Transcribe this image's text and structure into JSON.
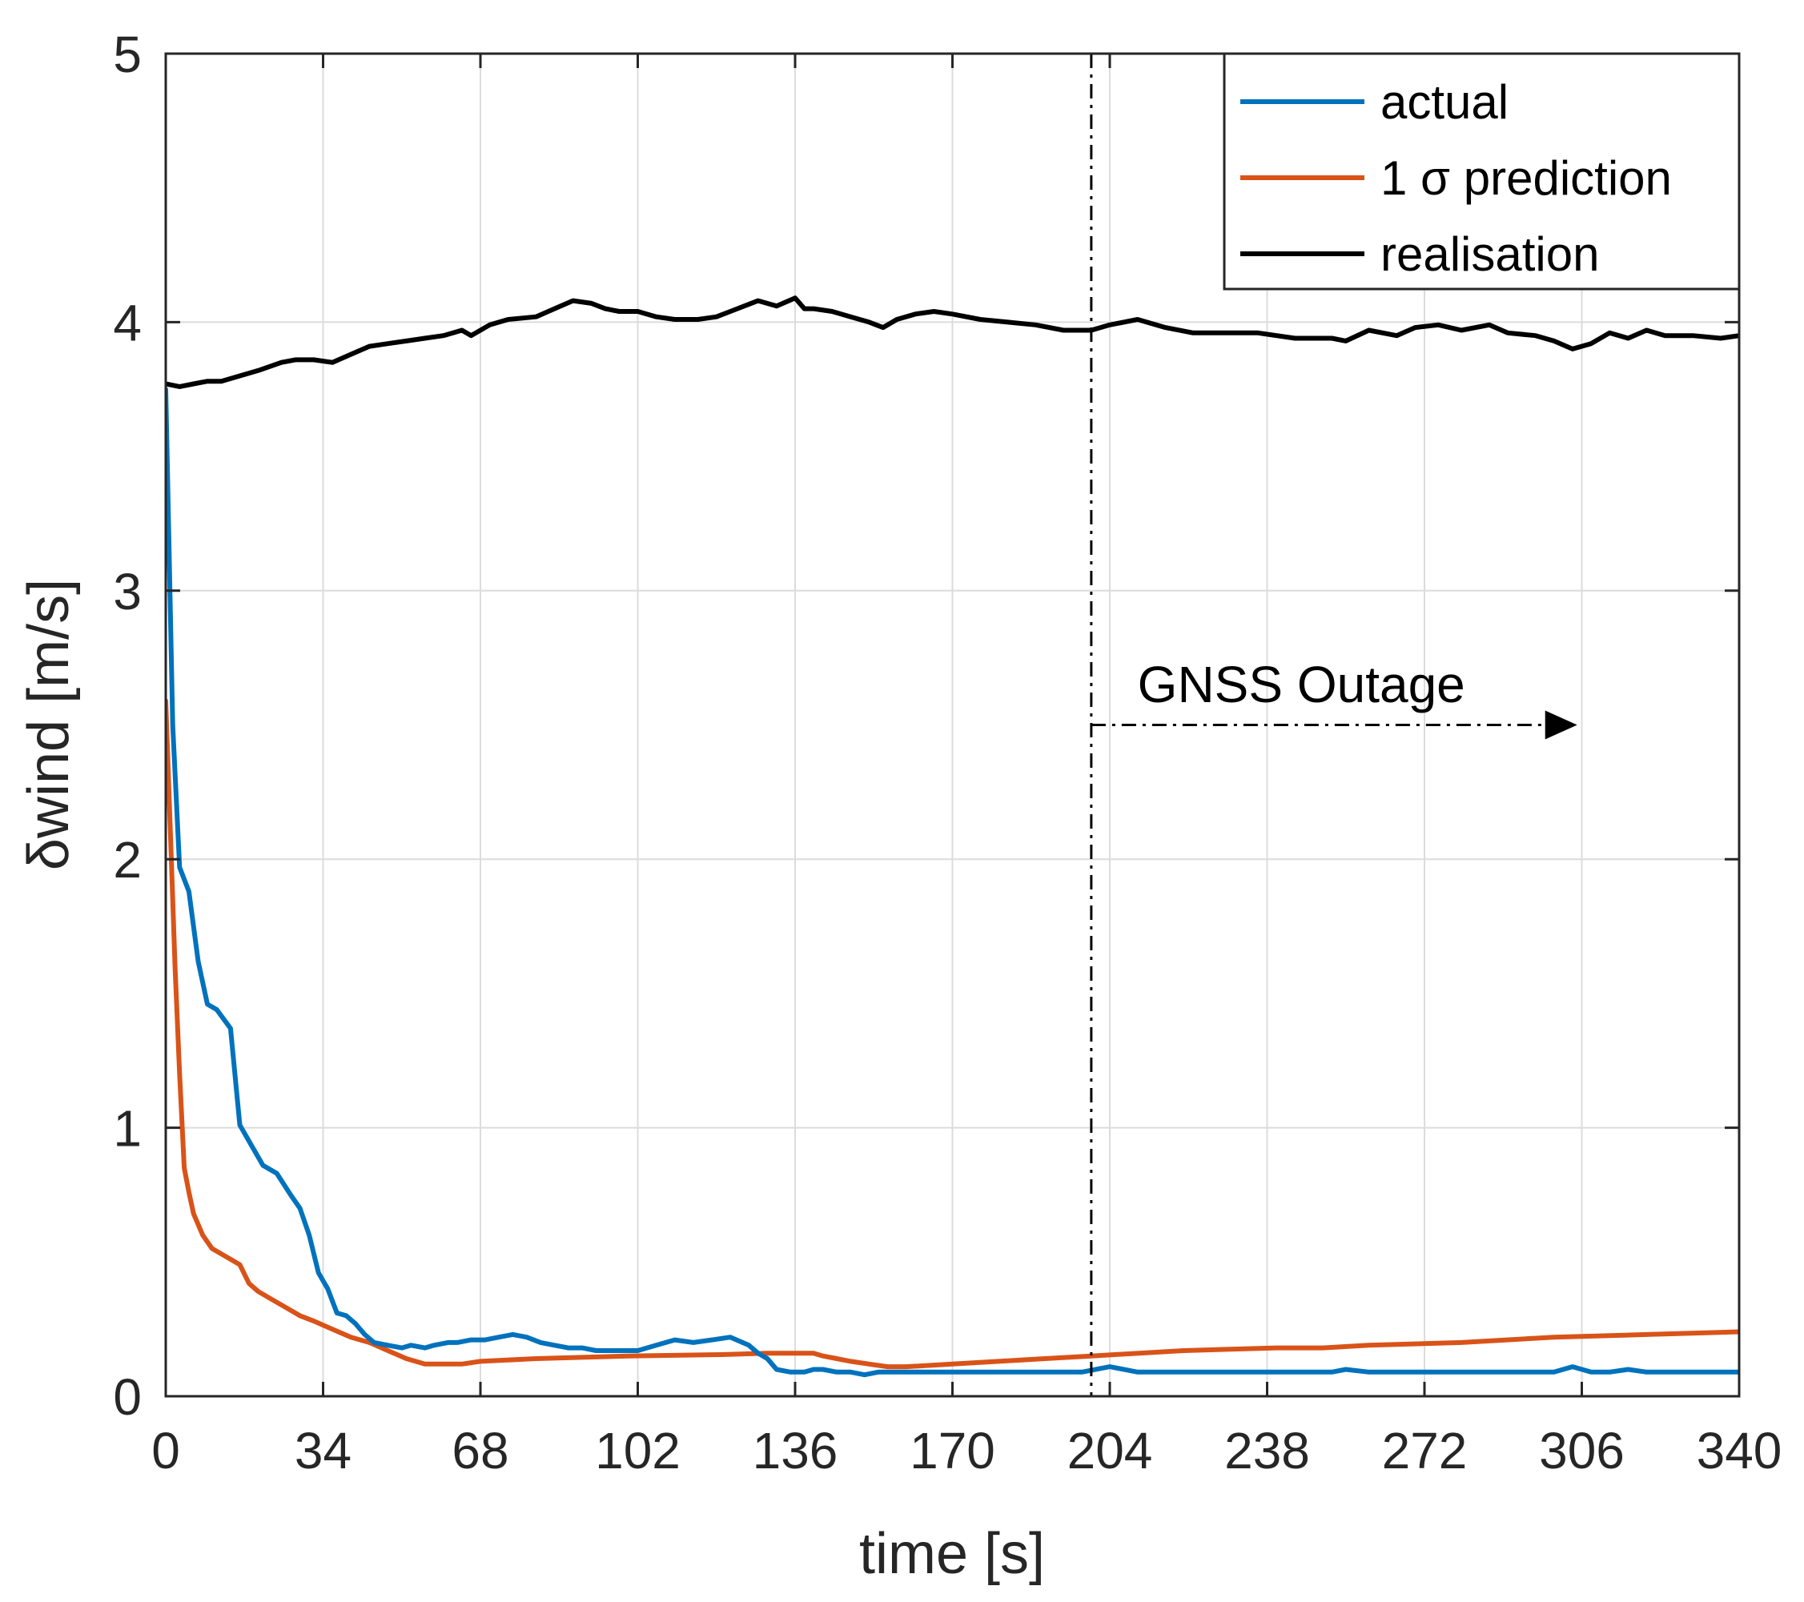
{
  "chart_data": {
    "type": "line",
    "title": "",
    "xlabel": "time [s]",
    "ylabel": "δwind [m/s]",
    "xlim": [
      0,
      340
    ],
    "ylim": [
      0,
      5
    ],
    "xticks": [
      0,
      34,
      68,
      102,
      136,
      170,
      204,
      238,
      272,
      306,
      340
    ],
    "yticks": [
      0,
      1,
      2,
      3,
      4,
      5
    ],
    "grid": true,
    "legend_position": "top-right",
    "colors": {
      "actual": "#0072BD",
      "prediction": "#D95319",
      "realisation": "#000000",
      "grid": "#dcdcdc",
      "axis": "#262626"
    },
    "series": [
      {
        "name": "actual",
        "color": "#0072BD",
        "x": [
          0,
          1.5,
          3,
          5,
          7,
          9,
          11,
          14,
          16,
          18,
          21,
          24,
          27,
          29,
          31,
          33,
          35,
          37,
          39,
          41,
          43,
          45,
          48,
          51,
          53,
          56,
          58,
          61,
          63,
          66,
          69,
          72,
          75,
          78,
          81,
          84,
          87,
          90,
          93,
          96,
          99,
          102,
          106,
          110,
          114,
          118,
          122,
          126,
          128,
          130,
          132,
          135,
          138,
          140,
          142,
          145,
          148,
          151,
          154,
          158,
          164,
          172,
          180,
          186,
          192,
          198,
          204,
          210,
          220,
          230,
          240,
          248,
          252,
          255,
          260,
          270,
          280,
          290,
          300,
          304,
          308,
          312,
          316,
          320,
          330,
          340
        ],
        "y": [
          3.75,
          2.5,
          1.97,
          1.88,
          1.62,
          1.46,
          1.44,
          1.37,
          1.01,
          0.95,
          0.86,
          0.83,
          0.75,
          0.7,
          0.6,
          0.46,
          0.4,
          0.31,
          0.3,
          0.27,
          0.23,
          0.2,
          0.19,
          0.18,
          0.19,
          0.18,
          0.19,
          0.2,
          0.2,
          0.21,
          0.21,
          0.22,
          0.23,
          0.22,
          0.2,
          0.19,
          0.18,
          0.18,
          0.17,
          0.17,
          0.17,
          0.17,
          0.19,
          0.21,
          0.2,
          0.21,
          0.22,
          0.19,
          0.16,
          0.14,
          0.1,
          0.09,
          0.09,
          0.1,
          0.1,
          0.09,
          0.09,
          0.08,
          0.09,
          0.09,
          0.09,
          0.09,
          0.09,
          0.09,
          0.09,
          0.09,
          0.11,
          0.09,
          0.09,
          0.09,
          0.09,
          0.09,
          0.09,
          0.1,
          0.09,
          0.09,
          0.09,
          0.09,
          0.09,
          0.11,
          0.09,
          0.09,
          0.1,
          0.09,
          0.09,
          0.09
        ]
      },
      {
        "name": "1 σ prediction",
        "color": "#D95319",
        "x": [
          0,
          1,
          2,
          3,
          4,
          5,
          6,
          8,
          10,
          12,
          14,
          16,
          18,
          20,
          23,
          26,
          29,
          32,
          36,
          40,
          44,
          48,
          52,
          56,
          60,
          64,
          68,
          80,
          100,
          120,
          130,
          136,
          140,
          142,
          145,
          148,
          152,
          156,
          160,
          170,
          180,
          190,
          200,
          220,
          240,
          250,
          260,
          280,
          300,
          320,
          340
        ],
        "y": [
          2.59,
          2.1,
          1.6,
          1.2,
          0.85,
          0.76,
          0.68,
          0.6,
          0.55,
          0.53,
          0.51,
          0.49,
          0.42,
          0.39,
          0.36,
          0.33,
          0.3,
          0.28,
          0.25,
          0.22,
          0.2,
          0.17,
          0.14,
          0.12,
          0.12,
          0.12,
          0.13,
          0.14,
          0.15,
          0.155,
          0.16,
          0.16,
          0.16,
          0.15,
          0.14,
          0.13,
          0.12,
          0.11,
          0.11,
          0.12,
          0.13,
          0.14,
          0.15,
          0.17,
          0.18,
          0.18,
          0.19,
          0.2,
          0.22,
          0.23,
          0.24
        ]
      },
      {
        "name": "realisation",
        "color": "#000000",
        "x": [
          0,
          3,
          6,
          9,
          12,
          16,
          20,
          25,
          28,
          32,
          36,
          40,
          44,
          48,
          52,
          56,
          60,
          64,
          66,
          70,
          74,
          80,
          84,
          88,
          92,
          95,
          98,
          102,
          106,
          110,
          115,
          119,
          122,
          128,
          132,
          136,
          138,
          140,
          144,
          148,
          152,
          155,
          158,
          162,
          166,
          170,
          176,
          182,
          188,
          194,
          200,
          204,
          210,
          216,
          222,
          228,
          236,
          244,
          252,
          255,
          260,
          266,
          270,
          275,
          280,
          286,
          290,
          296,
          300,
          304,
          308,
          312,
          316,
          320,
          324,
          330,
          336,
          340
        ],
        "y": [
          3.77,
          3.76,
          3.77,
          3.78,
          3.78,
          3.8,
          3.82,
          3.85,
          3.86,
          3.86,
          3.85,
          3.88,
          3.91,
          3.92,
          3.93,
          3.94,
          3.95,
          3.97,
          3.95,
          3.99,
          4.01,
          4.02,
          4.05,
          4.08,
          4.07,
          4.05,
          4.04,
          4.04,
          4.02,
          4.01,
          4.01,
          4.02,
          4.04,
          4.08,
          4.06,
          4.09,
          4.05,
          4.05,
          4.04,
          4.02,
          4.0,
          3.98,
          4.01,
          4.03,
          4.04,
          4.03,
          4.01,
          4.0,
          3.99,
          3.97,
          3.97,
          3.99,
          4.01,
          3.98,
          3.96,
          3.96,
          3.96,
          3.94,
          3.94,
          3.93,
          3.97,
          3.95,
          3.98,
          3.99,
          3.97,
          3.99,
          3.96,
          3.95,
          3.93,
          3.9,
          3.92,
          3.96,
          3.94,
          3.97,
          3.95,
          3.95,
          3.94,
          3.95
        ]
      }
    ],
    "legend": [
      "actual",
      "1 σ prediction",
      "realisation"
    ],
    "outage_start_x": 200,
    "outage_arrow": {
      "x_start": 200,
      "x_end": 305,
      "y": 2.5
    },
    "annotation": {
      "text": "GNSS Outage",
      "x": 210,
      "y": 2.65
    }
  }
}
